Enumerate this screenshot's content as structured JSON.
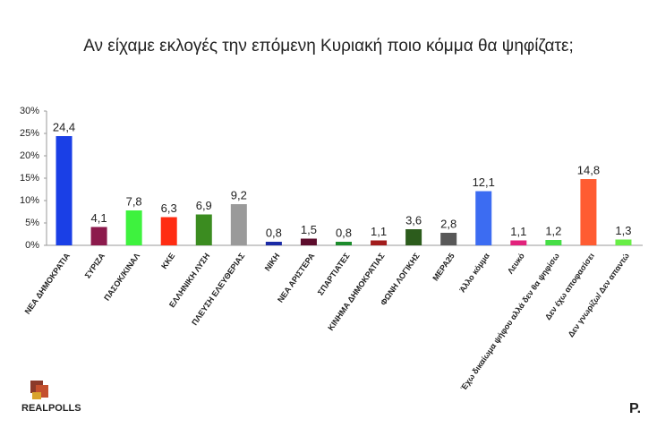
{
  "chart_data": {
    "type": "bar",
    "title": "Αν είχαμε εκλογές την επόμενη Κυριακή ποιο κόμμα θα ψηφίζατε;",
    "categories": [
      "ΝΕΑ ΔΗΜΟΚΡΑΤΙΑ",
      "ΣΥΡΙΖΑ",
      "ΠΑΣΟΚ/ΚΙΝΑΛ",
      "ΚΚΕ",
      "ΕΛΛΗΝΙΚΗ ΛΥΣΗ",
      "ΠΛΕΥΣΗ ΕΛΕΥΘΕΡΙΑΣ",
      "ΝΙΚΗ",
      "ΝΕΑ ΑΡΙΣΤΕΡΑ",
      "ΣΠΑΡΤΙΑΤΕΣ",
      "ΚΙΝΗΜΑ ΔΗΜΟΚΡΑΤΙΑΣ",
      "ΦΩΝΗ ΛΟΓΙΚΗΣ",
      "ΜΕΡΑ25",
      "Άλλο κόμμα",
      "Λευκό",
      "Έχω δικαίωμα ψήφου αλλά δεν θα ψηφίσω",
      "Δεν έχω αποφασίσει",
      "Δεν γνωρίζω/ Δεν απαντώ"
    ],
    "values": [
      24.4,
      4.1,
      7.8,
      6.3,
      6.9,
      9.2,
      0.8,
      1.5,
      0.8,
      1.1,
      3.6,
      2.8,
      12.1,
      1.1,
      1.2,
      14.8,
      1.3
    ],
    "value_labels": [
      "24,4",
      "4,1",
      "7,8",
      "6,3",
      "6,9",
      "9,2",
      "0,8",
      "1,5",
      "0,8",
      "1,1",
      "3,6",
      "2,8",
      "12,1",
      "1,1",
      "1,2",
      "14,8",
      "1,3"
    ],
    "colors": [
      "#1a3fe6",
      "#8c1a4c",
      "#3ef23e",
      "#ff2c12",
      "#3b8c20",
      "#9a9a9a",
      "#1b2ba6",
      "#5c0c2c",
      "#1c8c2c",
      "#a21c1c",
      "#2c5c1c",
      "#585858",
      "#3c6cf2",
      "#e2227c",
      "#46de46",
      "#ff5c32",
      "#68ee46"
    ],
    "ylim": [
      0,
      30
    ],
    "yticks": [
      {
        "value": 0,
        "label": "0%"
      },
      {
        "value": 5,
        "label": "5%"
      },
      {
        "value": 10,
        "label": "10%"
      },
      {
        "value": 15,
        "label": "15%"
      },
      {
        "value": 20,
        "label": "20%"
      },
      {
        "value": 25,
        "label": "25%"
      },
      {
        "value": 30,
        "label": "30%"
      }
    ]
  },
  "branding": {
    "left": "REALPOLLS",
    "right": "P."
  }
}
